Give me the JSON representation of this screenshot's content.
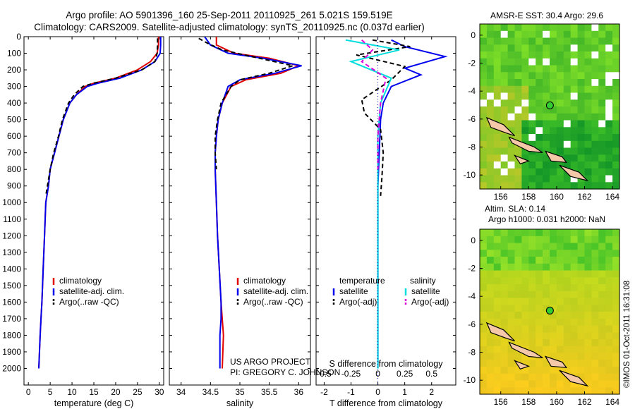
{
  "header": {
    "title_line1": "Argo profile: AO 5901396_160 25-Sep-2011 20110925_261 5.021S 159.519E",
    "title_line2": "Climatology: CARS2009. Satellite-adjusted climatology: synTS_20110925.nc (0.037d earlier)"
  },
  "colors": {
    "climatology": "#e00000",
    "satellite": "#0000ee",
    "argo": "#000000",
    "salinity_sat": "#00dddd",
    "salinity_argo": "#dd00dd"
  },
  "chart_data": [
    {
      "type": "line",
      "id": "temperature",
      "xlabel": "temperature (deg C)",
      "ylabel": "",
      "xlim": [
        -1,
        31
      ],
      "ylim": [
        2100,
        0
      ],
      "xticks": [
        0,
        5,
        10,
        15,
        20,
        25,
        30
      ],
      "yticks": [
        0,
        100,
        200,
        300,
        400,
        500,
        600,
        700,
        800,
        900,
        1000,
        1100,
        1200,
        1300,
        1400,
        1500,
        1600,
        1700,
        1800,
        1900,
        2000
      ],
      "legend": [
        "climatology",
        "satellite-adj. clim.",
        "Argo(..raw -QC)"
      ],
      "series": [
        {
          "name": "climatology",
          "color": "#e00000",
          "x": [
            29.8,
            29.8,
            29.5,
            28,
            25,
            20,
            15,
            13,
            11,
            9.5,
            8,
            7,
            6,
            5,
            4.6,
            4,
            3.7,
            3.4,
            3.1,
            2.9,
            2.7,
            2.4
          ],
          "y": [
            0,
            50,
            100,
            150,
            200,
            250,
            280,
            300,
            350,
            400,
            500,
            600,
            700,
            800,
            900,
            1000,
            1200,
            1400,
            1600,
            1700,
            1800,
            2000
          ]
        },
        {
          "name": "satellite-adj. clim.",
          "color": "#0000ee",
          "x": [
            30.3,
            30.3,
            30.2,
            29,
            26,
            21,
            16,
            13.5,
            11,
            9.5,
            8,
            7,
            6,
            5,
            4.6,
            4,
            3.7,
            3.4,
            3.1,
            2.9,
            2.7,
            2.4
          ],
          "y": [
            0,
            50,
            100,
            150,
            200,
            250,
            280,
            300,
            350,
            400,
            500,
            600,
            700,
            800,
            900,
            1000,
            1200,
            1400,
            1600,
            1700,
            1800,
            2000
          ]
        },
        {
          "name": "Argo(..raw -QC)",
          "color": "#000000",
          "x": [
            29.6,
            29.6,
            29.5,
            29,
            26,
            20,
            15,
            12.5,
            10.5,
            9.2,
            7.8,
            6.9,
            5.8,
            5.0,
            4.5,
            4.0
          ],
          "y": [
            10,
            50,
            100,
            150,
            200,
            250,
            280,
            300,
            350,
            400,
            500,
            600,
            700,
            800,
            880,
            960
          ]
        }
      ]
    },
    {
      "type": "line",
      "id": "salinity",
      "xlabel": "salinity",
      "xlim": [
        33.8,
        36.2
      ],
      "ylim": [
        2100,
        0
      ],
      "xticks": [
        34,
        34.5,
        35,
        35.5,
        36
      ],
      "legend": [
        "climatology",
        "satellite-adj. clim.",
        "Argo(..raw -QC)"
      ],
      "credit_line1": "US ARGO PROJECT",
      "credit_line2": "PI: GREGORY C. JOHNSON",
      "series": [
        {
          "name": "climatology",
          "color": "#e00000",
          "x": [
            34.6,
            34.6,
            34.9,
            35.5,
            36.0,
            35.7,
            35.1,
            34.85,
            34.7,
            34.63,
            34.6,
            34.58,
            34.58,
            34.6,
            34.62,
            34.65,
            34.68,
            34.7,
            34.72,
            34.7
          ],
          "y": [
            0,
            50,
            100,
            130,
            175,
            220,
            260,
            300,
            400,
            500,
            600,
            700,
            800,
            1000,
            1200,
            1400,
            1600,
            1700,
            1800,
            2000
          ]
        },
        {
          "name": "satellite-adj. clim.",
          "color": "#0000ee",
          "x": [
            34.4,
            34.5,
            34.8,
            35.4,
            36.05,
            35.6,
            35.0,
            34.8,
            34.7,
            34.63,
            34.6,
            34.58,
            34.58,
            34.6,
            34.62,
            34.65,
            34.68,
            34.68,
            34.66,
            34.66
          ],
          "y": [
            0,
            50,
            100,
            130,
            175,
            220,
            260,
            300,
            400,
            500,
            600,
            700,
            800,
            1000,
            1200,
            1400,
            1600,
            1700,
            1800,
            2000
          ]
        },
        {
          "name": "Argo(..raw -QC)",
          "color": "#000000",
          "x": [
            34.3,
            34.45,
            34.7,
            35.2,
            35.9,
            35.5,
            35.0,
            34.85,
            34.68,
            34.62,
            34.58,
            34.58,
            34.6
          ],
          "y": [
            10,
            40,
            80,
            120,
            175,
            220,
            260,
            300,
            400,
            500,
            600,
            700,
            800
          ]
        }
      ]
    },
    {
      "type": "line",
      "id": "difference",
      "xlabel": "T difference from climatology",
      "xlabel2": "S difference from climatology",
      "xlim": [
        -2.3,
        2.9
      ],
      "ylim": [
        2100,
        0
      ],
      "xticks": [
        -2,
        -1,
        0,
        1,
        2
      ],
      "xticks2": [
        "-0.5",
        "-0.25",
        "0",
        "0.25",
        "0.5"
      ],
      "legend_left_title": "temperature",
      "legend_right_title": "salinity",
      "legend_left": [
        "satellite",
        "Argo(-adj)"
      ],
      "legend_right": [
        "satellite",
        "Argo(-adj)"
      ],
      "series": [
        {
          "name": "T satellite",
          "color": "#0000ee",
          "x": [
            0.5,
            1.0,
            2.5,
            1.0,
            1.6,
            0.5,
            0.2,
            0.1,
            0.05,
            0,
            0,
            0,
            0,
            0
          ],
          "y": [
            20,
            60,
            120,
            190,
            230,
            300,
            400,
            500,
            700,
            900,
            1200,
            1500,
            1800,
            2000
          ]
        },
        {
          "name": "T Argo(-adj)",
          "color": "#000000",
          "x": [
            -0.2,
            1.2,
            -0.8,
            1.0,
            0.5,
            -0.6,
            -0.5,
            0.1,
            0.2,
            0.15,
            0.1
          ],
          "y": [
            20,
            60,
            110,
            180,
            260,
            380,
            460,
            560,
            700,
            850,
            960
          ]
        },
        {
          "name": "S satellite",
          "color": "#00dddd",
          "x": [
            -1.2,
            0.8,
            -1.0,
            0.5,
            0.1,
            0,
            0,
            0,
            0,
            0
          ],
          "y": [
            20,
            80,
            150,
            250,
            400,
            600,
            900,
            1200,
            1600,
            2000
          ]
        },
        {
          "name": "S Argo(-adj)",
          "color": "#dd00dd",
          "x": [
            -0.6,
            -0.2,
            -0.6,
            0.3,
            0.1,
            0,
            0
          ],
          "y": [
            20,
            80,
            150,
            250,
            400,
            600,
            800
          ]
        }
      ]
    },
    {
      "type": "heatmap",
      "id": "sst-map",
      "title": "AMSR-E SST: 30.4 Argo: 29.6",
      "xticks": [
        156,
        158,
        160,
        162,
        164
      ],
      "yticks": [
        0,
        -2,
        -4,
        -6,
        -8,
        -10
      ],
      "xlim": [
        154.5,
        164.5
      ],
      "ylim": [
        -11,
        0.8
      ],
      "argo_position": [
        159.519,
        -5.021
      ]
    },
    {
      "type": "heatmap",
      "id": "sla-map",
      "title_line1": "Altim. SLA: 0.14",
      "title_line2": "Argo h1000: 0.031 h2000: NaN",
      "xticks": [
        156,
        158,
        160,
        162,
        164
      ],
      "yticks": [
        0,
        -2,
        -4,
        -6,
        -8,
        -10
      ],
      "xlim": [
        154.5,
        164.5
      ],
      "ylim": [
        -11,
        0.8
      ],
      "argo_position": [
        159.519,
        -5.021
      ]
    }
  ],
  "footer": {
    "stamp": "©IMOS 01-Oct-2011 16:31:08"
  }
}
